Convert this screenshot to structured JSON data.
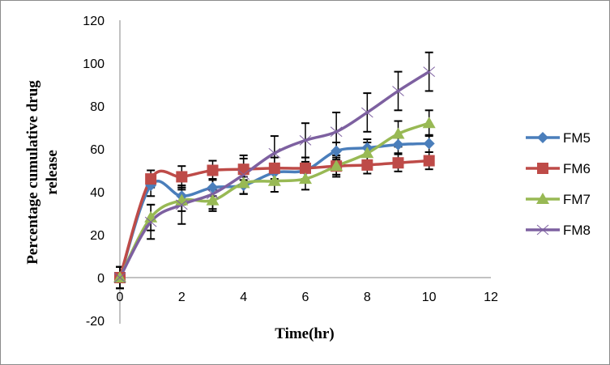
{
  "chart_data": {
    "type": "line",
    "title": "",
    "xlabel": "Time(hr)",
    "ylabel": "Percentage cumulative drug release",
    "ylabel_lines": [
      "Percentage cumulative drug",
      "release"
    ],
    "xlim": [
      0,
      12
    ],
    "ylim": [
      -20,
      120
    ],
    "x_ticks": [
      0,
      2,
      4,
      6,
      8,
      10,
      12
    ],
    "y_ticks": [
      -20,
      0,
      20,
      40,
      60,
      80,
      100,
      120
    ],
    "grid": false,
    "legend": "right",
    "x": [
      0,
      1,
      2,
      3,
      4,
      5,
      6,
      7,
      8,
      9,
      10
    ],
    "series": [
      {
        "name": "FM5",
        "color": "#4a7ebb",
        "marker": "diamond",
        "values": [
          0,
          43,
          38,
          42,
          43,
          49,
          50,
          59,
          60.5,
          62,
          62.5
        ],
        "errors": [
          0,
          5,
          4,
          4,
          4,
          4,
          4,
          4,
          4,
          4,
          4
        ]
      },
      {
        "name": "FM6",
        "color": "#be4b48",
        "marker": "square",
        "values": [
          0,
          46,
          47,
          50,
          50.5,
          51,
          51,
          52,
          52.5,
          53.5,
          54.5
        ],
        "errors": [
          5,
          4,
          5,
          4.5,
          5,
          5,
          5,
          4,
          4,
          4,
          4
        ]
      },
      {
        "name": "FM7",
        "color": "#98b954",
        "marker": "triangle",
        "values": [
          0,
          28,
          36,
          36,
          44,
          45,
          46,
          52,
          58,
          67,
          72
        ],
        "errors": [
          5,
          6,
          5,
          5,
          5,
          5,
          5,
          5,
          5,
          6,
          6
        ]
      },
      {
        "name": "FM8",
        "color": "#7d60a0",
        "marker": "x",
        "values": [
          0,
          26,
          34,
          39,
          48,
          58,
          64,
          68,
          77,
          87,
          96
        ],
        "errors": [
          5,
          8,
          9,
          7,
          9,
          8,
          8,
          9,
          9,
          9,
          9
        ]
      }
    ]
  }
}
